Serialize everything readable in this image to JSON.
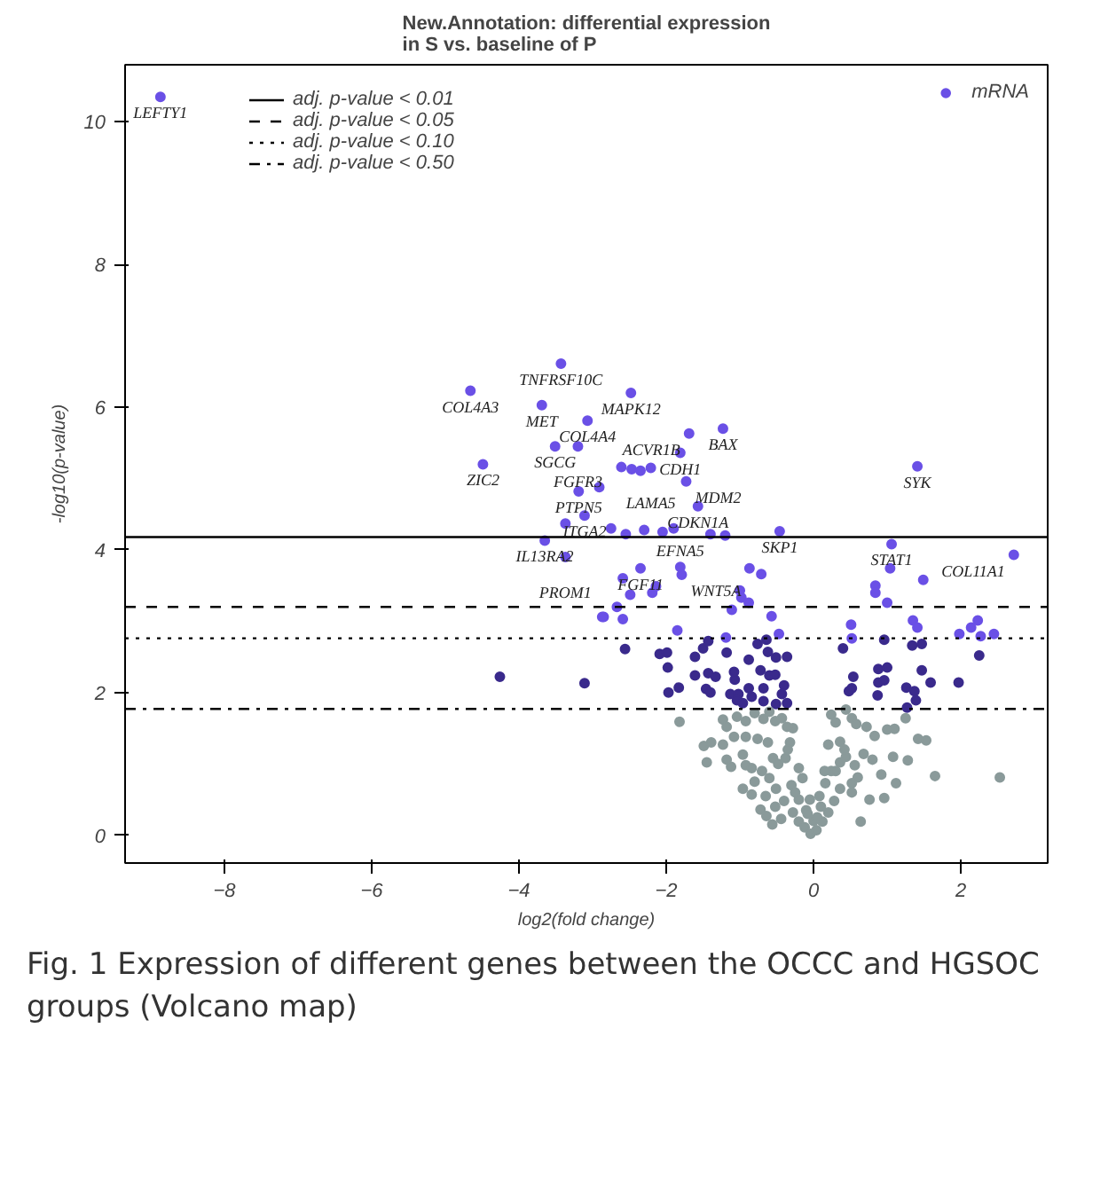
{
  "chart_data": {
    "type": "scatter",
    "title": "New.Annotation: differential expression\nin S vs. baseline of P",
    "xlabel": "log2(fold change)",
    "ylabel": "-log10(p-value)",
    "xlim": [
      -9.35,
      3.18
    ],
    "ylim": [
      -0.39,
      10.8
    ],
    "xticks": [
      -8,
      -6,
      -4,
      -2,
      0,
      2
    ],
    "yticks": [
      0,
      2,
      4,
      6,
      8,
      10
    ],
    "grid": false,
    "legend": "top right",
    "marker": "circle",
    "series": [
      {
        "name": "mRNA",
        "color": "#6a50e6",
        "x": [
          -8.87,
          -3.43,
          -4.66,
          -2.48,
          -3.69,
          -3.07,
          -1.23,
          -1.69,
          -3.51,
          -3.2,
          -1.81,
          -4.49,
          -2.21,
          1.41,
          -1.73,
          -3.19,
          -3.11,
          -1.57,
          -0.46,
          -3.65,
          1.06,
          2.72,
          -3.37,
          -2.35,
          -1.81,
          -1.79,
          -2.91,
          -3.37,
          -2.61,
          -2.47,
          -2.35,
          -2.75,
          -2.55,
          -2.3,
          -2.05,
          -1.9,
          -1.4,
          -1.2,
          -0.71,
          -0.87,
          -2.85,
          -2.59,
          -2.49,
          -2.19,
          -2.14,
          -2.67,
          -2.87,
          -2.59,
          -1.85,
          -1.0,
          -0.98,
          -0.88,
          -1.11,
          -0.57,
          -0.47,
          -1.19,
          0.84,
          0.84,
          1.04,
          1.0,
          1.49,
          1.35,
          1.41,
          0.51,
          0.52,
          1.98,
          2.14,
          2.23,
          2.27,
          2.45
        ],
        "values": [
          10.35,
          6.61,
          6.23,
          6.2,
          6.03,
          5.81,
          5.7,
          5.63,
          5.45,
          5.45,
          5.36,
          5.2,
          5.15,
          5.17,
          4.96,
          4.82,
          4.48,
          4.61,
          4.26,
          4.13,
          4.08,
          3.93,
          3.9,
          3.74,
          3.76,
          3.65,
          4.88,
          4.37,
          5.16,
          5.13,
          5.11,
          4.3,
          4.22,
          4.28,
          4.25,
          4.3,
          4.22,
          4.2,
          3.66,
          3.74,
          3.06,
          3.6,
          3.37,
          3.4,
          3.49,
          3.2,
          3.06,
          3.03,
          2.87,
          3.43,
          3.33,
          3.26,
          3.16,
          3.07,
          2.82,
          2.77,
          3.5,
          3.4,
          3.74,
          3.26,
          3.58,
          3.01,
          2.91,
          2.95,
          2.76,
          2.82,
          2.91,
          3.01,
          2.79,
          2.82
        ]
      },
      {
        "color": "#3a2a8c",
        "x": [
          -4.26,
          -3.11,
          -2.56,
          -2.09,
          -1.99,
          -1.98,
          -1.97,
          -1.83,
          -1.61,
          -1.5,
          -1.43,
          -1.61,
          -1.43,
          -1.33,
          -1.46,
          -1.4,
          -1.18,
          -1.08,
          -1.07,
          -1.13,
          -1.02,
          -1.04,
          -0.96,
          -0.88,
          -0.76,
          -0.72,
          -0.64,
          -0.62,
          -0.51,
          -0.36,
          -0.88,
          -0.84,
          -0.68,
          -0.6,
          -0.52,
          -0.4,
          -0.43,
          -0.36,
          -0.51,
          -0.68,
          0.4,
          0.54,
          0.48,
          0.52,
          0.88,
          1.0,
          0.88,
          0.96,
          0.87,
          0.96,
          1.34,
          1.47,
          1.26,
          1.37,
          1.39,
          1.47,
          1.59,
          1.27,
          1.97,
          2.25
        ],
        "values": [
          2.22,
          2.13,
          2.61,
          2.54,
          2.56,
          2.35,
          2.0,
          2.07,
          2.5,
          2.62,
          2.72,
          2.24,
          2.27,
          2.22,
          2.05,
          2.0,
          2.56,
          2.29,
          2.18,
          1.98,
          1.98,
          1.89,
          1.85,
          2.46,
          2.68,
          2.31,
          2.74,
          2.57,
          2.49,
          2.5,
          2.06,
          1.94,
          2.06,
          2.24,
          2.25,
          2.1,
          1.98,
          1.85,
          1.84,
          1.88,
          2.62,
          2.22,
          2.02,
          2.06,
          2.33,
          2.35,
          2.14,
          2.17,
          1.96,
          2.74,
          2.66,
          2.68,
          2.07,
          2.02,
          1.89,
          2.31,
          2.14,
          1.79,
          2.14,
          2.52
        ]
      },
      {
        "color": "#8a9a9a",
        "x": [
          -1.82,
          -1.23,
          -1.18,
          -1.04,
          -0.92,
          -0.8,
          -0.68,
          -0.6,
          -0.52,
          -0.43,
          -0.28,
          -0.36,
          -1.49,
          -1.39,
          -1.45,
          -1.23,
          -1.08,
          -0.92,
          -0.76,
          -1.18,
          -1.12,
          -0.96,
          -0.92,
          -0.84,
          -0.62,
          -0.55,
          -0.48,
          -0.38,
          -0.32,
          -0.2,
          -0.96,
          -0.84,
          -0.72,
          -0.64,
          -0.52,
          -0.51,
          -0.4,
          -0.28,
          -0.2,
          -0.12,
          -0.04,
          0.04,
          0.12,
          0.2,
          0.28,
          0.36,
          0.52,
          0.64,
          0.76,
          0.96,
          -0.44,
          -0.56,
          0.24,
          0.3,
          0.44,
          0.52,
          0.58,
          0.72,
          0.83,
          1.0,
          1.1,
          1.25,
          1.42,
          1.53,
          1.28,
          1.65,
          2.53,
          0.2,
          0.36,
          0.44,
          0.56,
          0.68,
          0.8,
          0.92,
          1.08,
          1.12,
          0.36,
          0.24,
          0.16,
          0.6,
          0.52,
          -0.6,
          -0.7,
          -0.3,
          -0.2,
          -0.1,
          0.0,
          0.1,
          0.05,
          -0.05,
          -0.15,
          -0.25,
          0.08,
          0.15,
          -0.08,
          0.3,
          -0.35,
          0.42,
          -0.65,
          -0.8
        ],
        "values": [
          1.59,
          1.62,
          1.52,
          1.66,
          1.6,
          1.71,
          1.63,
          1.73,
          1.6,
          1.64,
          1.5,
          1.52,
          1.25,
          1.3,
          1.02,
          1.27,
          1.38,
          1.38,
          1.35,
          1.06,
          0.96,
          1.13,
          0.98,
          0.94,
          1.3,
          1.08,
          1.0,
          1.08,
          1.3,
          0.94,
          0.65,
          0.57,
          0.36,
          0.27,
          0.4,
          0.65,
          0.48,
          0.32,
          0.19,
          0.11,
          0.02,
          0.07,
          0.19,
          0.32,
          0.48,
          0.65,
          0.73,
          0.19,
          0.5,
          0.52,
          0.23,
          0.15,
          1.69,
          1.58,
          1.76,
          1.64,
          1.56,
          1.52,
          1.39,
          1.48,
          1.49,
          1.64,
          1.35,
          1.33,
          1.05,
          0.83,
          0.81,
          1.27,
          1.31,
          1.1,
          0.98,
          1.14,
          1.06,
          0.85,
          1.1,
          0.73,
          1.02,
          0.9,
          0.73,
          0.81,
          0.6,
          0.8,
          0.9,
          0.7,
          0.5,
          0.35,
          0.2,
          0.4,
          0.25,
          0.5,
          0.8,
          0.6,
          0.55,
          0.9,
          0.3,
          0.9,
          1.2,
          1.2,
          0.55,
          0.75
        ]
      }
    ],
    "ref_lines": [
      {
        "axis": "y",
        "value": 4.18,
        "label": "adj. p-value < 0.01",
        "line_style": "solid",
        "color": "#000000"
      },
      {
        "axis": "y",
        "value": 3.2,
        "label": "adj. p-value < 0.05",
        "line_style": "dashed",
        "color": "#000000"
      },
      {
        "axis": "y",
        "value": 2.76,
        "label": "adj. p-value < 0.10",
        "line_style": "dotted",
        "color": "#000000"
      },
      {
        "axis": "y",
        "value": 1.77,
        "label": "adj. p-value < 0.50",
        "line_style": "dashdot",
        "color": "#000000"
      }
    ],
    "annotations": [
      {
        "text": "LEFTY1",
        "x": -8.87,
        "y": 10.35
      },
      {
        "text": "TNFRSF10C",
        "x": -3.43,
        "y": 6.61
      },
      {
        "text": "COL4A3",
        "x": -4.66,
        "y": 6.23
      },
      {
        "text": "MAPK12",
        "x": -2.48,
        "y": 6.2
      },
      {
        "text": "MET",
        "x": -3.69,
        "y": 6.03
      },
      {
        "text": "COL4A4",
        "x": -3.07,
        "y": 5.81
      },
      {
        "text": "BAX",
        "x": -1.23,
        "y": 5.7
      },
      {
        "text": "ACVR1B",
        "x": -1.69,
        "y": 5.63
      },
      {
        "text": "SGCG",
        "x": -3.51,
        "y": 5.45
      },
      {
        "text": "FGFR3",
        "x": -3.2,
        "y": 5.45
      },
      {
        "text": "CDH1",
        "x": -1.81,
        "y": 5.36
      },
      {
        "text": "ZIC2",
        "x": -4.49,
        "y": 5.2
      },
      {
        "text": "LAMA5",
        "x": -2.21,
        "y": 5.15
      },
      {
        "text": "SYK",
        "x": 1.41,
        "y": 5.17
      },
      {
        "text": "MDM2",
        "x": -1.73,
        "y": 4.96
      },
      {
        "text": "PTPN5",
        "x": -3.19,
        "y": 4.82
      },
      {
        "text": "ITGA2",
        "x": -3.11,
        "y": 4.48
      },
      {
        "text": "CDKN1A",
        "x": -1.57,
        "y": 4.61
      },
      {
        "text": "SKP1",
        "x": -0.46,
        "y": 4.26
      },
      {
        "text": "IL13RA2",
        "x": -3.65,
        "y": 4.13
      },
      {
        "text": "STAT1",
        "x": 1.06,
        "y": 4.08
      },
      {
        "text": "COL11A1",
        "x": 2.72,
        "y": 3.93
      },
      {
        "text": "PROM1",
        "x": -3.37,
        "y": 3.9
      },
      {
        "text": "FGF11",
        "x": -2.35,
        "y": 3.74
      },
      {
        "text": "EFNA5",
        "x": -1.81,
        "y": 3.76
      },
      {
        "text": "WNT5A",
        "x": -1.79,
        "y": 3.65
      },
      "Fig. 1 Expression of different genes between the OCCC and HGSOC groups (Volcano map)"
    ]
  }
}
